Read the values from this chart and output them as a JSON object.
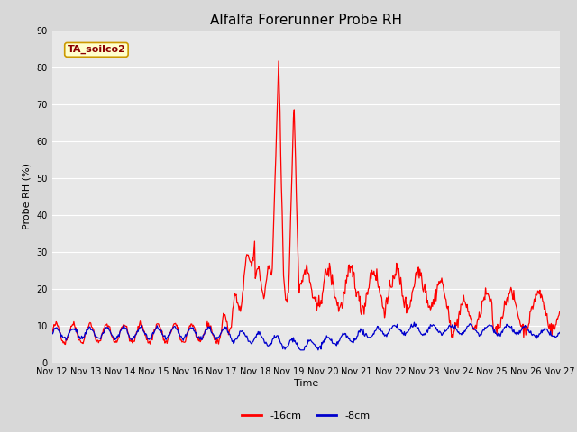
{
  "title": "Alfalfa Forerunner Probe RH",
  "ylabel": "Probe RH (%)",
  "xlabel": "Time",
  "ylim": [
    0,
    90
  ],
  "yticks": [
    0,
    10,
    20,
    30,
    40,
    50,
    60,
    70,
    80,
    90
  ],
  "n_days": 15,
  "x_labels": [
    "Nov 12",
    "Nov 13",
    "Nov 14",
    "Nov 15",
    "Nov 16",
    "Nov 17",
    "Nov 18",
    "Nov 19",
    "Nov 20",
    "Nov 21",
    "Nov 22",
    "Nov 23",
    "Nov 24",
    "Nov 25",
    "Nov 26",
    "Nov 27"
  ],
  "fig_bg_color": "#d8d8d8",
  "axes_bg_color": "#d8d8d8",
  "plot_area_bg": "#e8e8e8",
  "grid_color": "#ffffff",
  "label_box_text": "TA_soilco2",
  "label_box_bg": "#ffffcc",
  "label_box_border": "#cc9900",
  "label_text_color": "#8b0000",
  "line1_color": "#ff0000",
  "line2_color": "#0000cc",
  "line1_label": "-16cm",
  "line2_label": "-8cm",
  "title_fontsize": 11,
  "axis_label_fontsize": 8,
  "tick_fontsize": 7,
  "legend_fontsize": 8
}
